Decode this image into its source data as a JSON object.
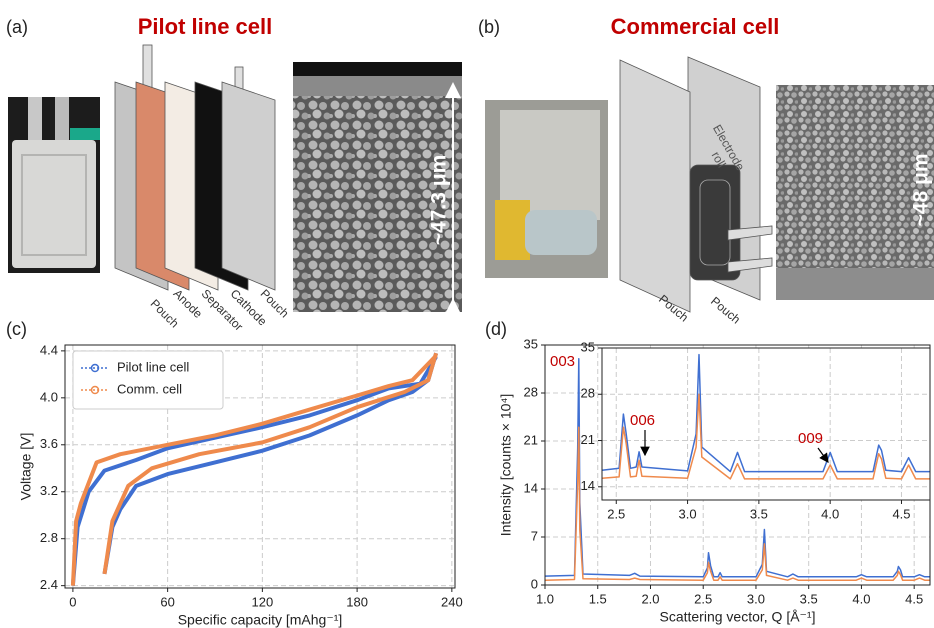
{
  "panel_a": {
    "label": "(a)",
    "title": "Pilot line cell",
    "layers": [
      "Pouch",
      "Anode",
      "Separator",
      "Cathode",
      "Pouch"
    ],
    "thickness": "~47.3 μm"
  },
  "panel_b": {
    "label": "(b)",
    "title": "Commercial cell",
    "layers": [
      "Pouch",
      "Pouch"
    ],
    "roll": [
      "Electrode",
      "roll"
    ],
    "thickness": "~48 μm"
  },
  "chart_data": [
    {
      "type": "line",
      "panel_label": "(c)",
      "xlabel": "Specific capacity [mAhg⁻¹]",
      "ylabel": "Voltage [V]",
      "xlim": [
        -5,
        242
      ],
      "ylim": [
        2.38,
        4.45
      ],
      "xticks": [
        0,
        60,
        120,
        180,
        240
      ],
      "yticks": [
        2.4,
        2.8,
        3.2,
        3.6,
        {
          "value": 4,
          "label": "4.0"
        },
        4.4
      ],
      "grid": true,
      "legend": "upper-left",
      "line_width": 4,
      "series": [
        {
          "name": "Pilot line cell",
          "color": "#3f6fd1",
          "x": [
            20,
            25,
            30,
            40,
            60,
            90,
            120,
            150,
            180,
            200,
            215,
            225,
            230,
            null,
            230,
            220,
            200,
            180,
            150,
            120,
            90,
            60,
            40,
            20,
            10,
            3,
            0
          ],
          "values": [
            2.5,
            2.9,
            3.05,
            3.25,
            3.35,
            3.45,
            3.55,
            3.68,
            3.85,
            3.98,
            4.05,
            4.15,
            4.38,
            null,
            4.35,
            4.12,
            4.08,
            3.98,
            3.85,
            3.75,
            3.66,
            3.57,
            3.47,
            3.38,
            3.2,
            2.9,
            2.4
          ]
        },
        {
          "name": "Comm. cell",
          "color": "#ef8a4c",
          "x": [
            20,
            25,
            35,
            50,
            80,
            120,
            150,
            180,
            210,
            225,
            230,
            null,
            230,
            215,
            200,
            180,
            150,
            120,
            90,
            60,
            30,
            15,
            5,
            2,
            0
          ],
          "values": [
            2.5,
            2.95,
            3.25,
            3.4,
            3.52,
            3.62,
            3.75,
            3.92,
            4.05,
            4.15,
            4.38,
            null,
            4.36,
            4.15,
            4.1,
            4.02,
            3.9,
            3.78,
            3.68,
            3.6,
            3.52,
            3.45,
            3.1,
            2.95,
            2.4
          ]
        }
      ]
    },
    {
      "type": "line",
      "panel_label": "(d)",
      "xlabel": "Scattering vector, Q [Å⁻¹]",
      "ylabel": "Intensity [counts × 10⁴]",
      "xlim": [
        1,
        4.65
      ],
      "ylim": [
        0,
        35
      ],
      "xticks": [
        {
          "value": 1,
          "label": "1.0"
        },
        1.5,
        {
          "value": 2,
          "label": "2.0"
        },
        2.5,
        {
          "value": 3,
          "label": "3.0"
        },
        3.5,
        {
          "value": 4,
          "label": "4.0"
        },
        4.5
      ],
      "yticks": [
        0,
        7,
        14,
        21,
        28,
        35
      ],
      "grid": true,
      "line_width": 1.5,
      "annotations": [
        "003"
      ],
      "x": [
        1.0,
        1.28,
        1.31,
        1.32,
        1.33,
        1.36,
        1.8,
        1.85,
        1.9,
        2.5,
        2.54,
        2.55,
        2.57,
        2.6,
        2.64,
        2.66,
        2.68,
        3.0,
        3.06,
        3.08,
        3.1,
        3.3,
        3.35,
        3.4,
        3.95,
        4.0,
        4.05,
        4.3,
        4.34,
        4.35,
        4.37,
        4.39,
        4.5,
        4.55,
        4.6,
        4.65
      ],
      "series": [
        {
          "color": "#3f6fd1",
          "values": [
            1.3,
            1.4,
            20,
            33,
            12,
            1.6,
            1.4,
            1.7,
            1.3,
            1.2,
            2.5,
            4.7,
            2.8,
            1.2,
            1.2,
            1.8,
            1.2,
            1.2,
            3.0,
            8.1,
            2.0,
            1.2,
            1.6,
            1.2,
            1.2,
            1.5,
            1.2,
            1.2,
            2.0,
            2.7,
            2.2,
            1.2,
            1.2,
            1.5,
            1.2,
            1.2
          ]
        },
        {
          "color": "#ef8a4c",
          "values": [
            0.7,
            0.8,
            15,
            23,
            8,
            0.9,
            0.8,
            1.0,
            0.8,
            0.7,
            1.8,
            3.3,
            2.0,
            0.7,
            0.7,
            1.2,
            0.7,
            0.7,
            2.2,
            6.0,
            1.4,
            0.7,
            1.0,
            0.7,
            0.7,
            1.0,
            0.7,
            0.7,
            1.4,
            2.0,
            1.5,
            0.7,
            0.7,
            1.0,
            0.7,
            0.7
          ]
        }
      ]
    },
    {
      "type": "line",
      "xlim": [
        2.4,
        4.7
      ],
      "ylim": [
        12,
        35
      ],
      "xticks": [
        2.5,
        {
          "value": 3,
          "label": "3.0"
        },
        3.5,
        {
          "value": 4,
          "label": "4.0"
        },
        4.5
      ],
      "yticks": [
        14,
        21,
        28,
        35
      ],
      "grid": true,
      "line_width": 1.5,
      "annotations": [
        "006",
        "009"
      ],
      "x": [
        2.4,
        2.52,
        2.55,
        2.57,
        2.6,
        2.64,
        2.66,
        2.68,
        3.0,
        3.06,
        3.08,
        3.1,
        3.3,
        3.35,
        3.4,
        3.95,
        4.0,
        4.05,
        4.3,
        4.34,
        4.36,
        4.39,
        4.5,
        4.55,
        4.6,
        4.7
      ],
      "series": [
        {
          "color": "#3f6fd1",
          "values": [
            16.5,
            16.8,
            25,
            22,
            16.8,
            17,
            19.3,
            17,
            16.4,
            22,
            34,
            20,
            16.3,
            19.2,
            16.3,
            16.3,
            19.2,
            16.3,
            16.3,
            20.3,
            19.5,
            16.5,
            16.3,
            18.4,
            16.3,
            16.3
          ]
        },
        {
          "color": "#ef8a4c",
          "values": [
            15.3,
            15.5,
            23,
            20.5,
            15.5,
            15.6,
            18,
            15.6,
            15.3,
            20,
            28,
            18.5,
            15.2,
            17.5,
            15.2,
            15.2,
            17.3,
            15.2,
            15.2,
            19,
            18.2,
            15.3,
            15.2,
            17.3,
            15.2,
            15.2
          ]
        }
      ]
    }
  ]
}
